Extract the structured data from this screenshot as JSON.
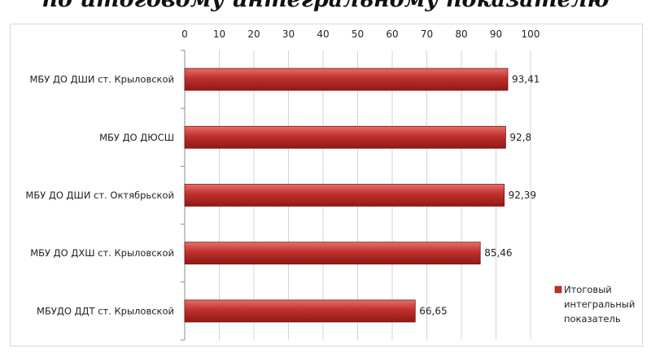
{
  "chart_data": {
    "type": "bar",
    "orientation": "horizontal",
    "title": "по итоговому интегральному показателю",
    "categories": [
      "МБУ ДО ДШИ ст. Крыловской",
      "МБУ ДО ДЮСШ",
      "МБУ ДО ДШИ ст. Октябрьской",
      "МБУ ДО ДХШ ст. Крыловской",
      "МБУДО ДДТ ст. Крыловской"
    ],
    "series": [
      {
        "name": "Итоговый интегральный показатель",
        "values": [
          93.41,
          92.8,
          92.39,
          85.46,
          66.65
        ],
        "labels": [
          "93,41",
          "92,8",
          "92,39",
          "85,46",
          "66,65"
        ],
        "color": "#c0302c"
      }
    ],
    "xlim": [
      0,
      100
    ],
    "xticks": [
      0,
      10,
      20,
      30,
      40,
      50,
      60,
      70,
      80,
      90,
      100
    ],
    "x_axis_position": "top",
    "grid": true,
    "legend": {
      "position": "right",
      "lines": [
        "Итоговый",
        "интегральный",
        "показатель"
      ]
    }
  }
}
